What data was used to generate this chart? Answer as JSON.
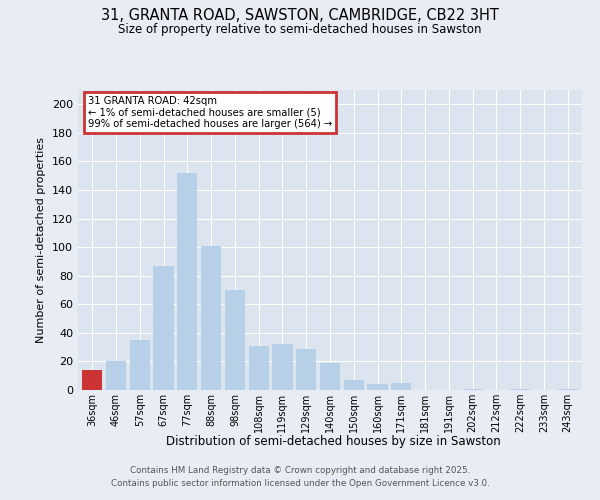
{
  "title": "31, GRANTA ROAD, SAWSTON, CAMBRIDGE, CB22 3HT",
  "subtitle": "Size of property relative to semi-detached houses in Sawston",
  "xlabel": "Distribution of semi-detached houses by size in Sawston",
  "ylabel": "Number of semi-detached properties",
  "bar_labels": [
    "36sqm",
    "46sqm",
    "57sqm",
    "67sqm",
    "77sqm",
    "88sqm",
    "98sqm",
    "108sqm",
    "119sqm",
    "129sqm",
    "140sqm",
    "150sqm",
    "160sqm",
    "171sqm",
    "181sqm",
    "191sqm",
    "202sqm",
    "212sqm",
    "222sqm",
    "233sqm",
    "243sqm"
  ],
  "bar_values": [
    14,
    20,
    35,
    87,
    152,
    101,
    70,
    31,
    32,
    29,
    19,
    7,
    4,
    5,
    0,
    0,
    1,
    0,
    1,
    0,
    1
  ],
  "bar_color": "#b8cfe8",
  "highlight_bar_index": 0,
  "highlight_color": "#cc3333",
  "annotation_title": "31 GRANTA ROAD: 42sqm",
  "annotation_line1": "← 1% of semi-detached houses are smaller (5)",
  "annotation_line2": "99% of semi-detached houses are larger (564) →",
  "annotation_box_color": "#cc3333",
  "ylim": [
    0,
    210
  ],
  "yticks": [
    0,
    20,
    40,
    60,
    80,
    100,
    120,
    140,
    160,
    180,
    200
  ],
  "background_color": "#e8edf5",
  "plot_background": "#dce4f0",
  "footer_line1": "Contains HM Land Registry data © Crown copyright and database right 2025.",
  "footer_line2": "Contains public sector information licensed under the Open Government Licence v3.0."
}
